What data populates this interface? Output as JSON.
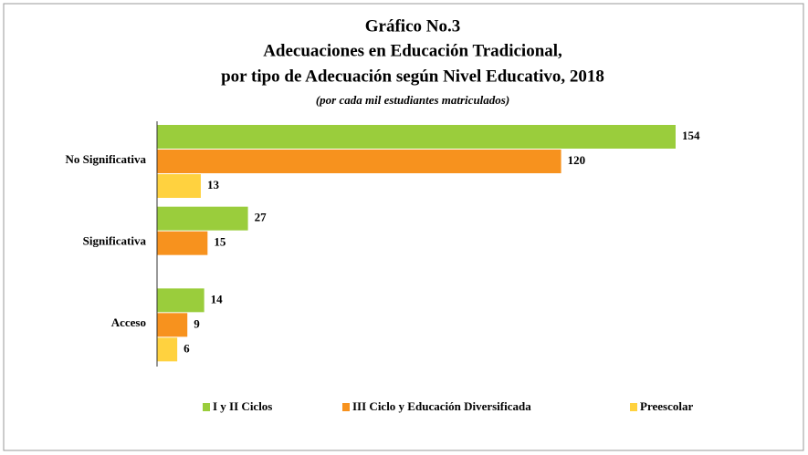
{
  "chart_data": {
    "type": "bar",
    "orientation": "horizontal",
    "title": [
      "Gráfico No.3",
      "Adecuaciones en Educación Tradicional,",
      "por tipo de Adecuación según Nivel Educativo, 2018"
    ],
    "subtitle": "(por cada mil estudiantes matriculados)",
    "categories": [
      "No Significativa",
      "Significativa",
      "Acceso"
    ],
    "series": [
      {
        "name": "I y II Ciclos",
        "color": "#9acd3c",
        "values": [
          154,
          27,
          14
        ]
      },
      {
        "name": "III Ciclo y Educación Diversificada",
        "color": "#f7921e",
        "values": [
          120,
          15,
          9
        ]
      },
      {
        "name": "Preescolar",
        "color": "#ffd23f",
        "values": [
          13,
          null,
          6
        ]
      }
    ],
    "legend": "bottom"
  }
}
